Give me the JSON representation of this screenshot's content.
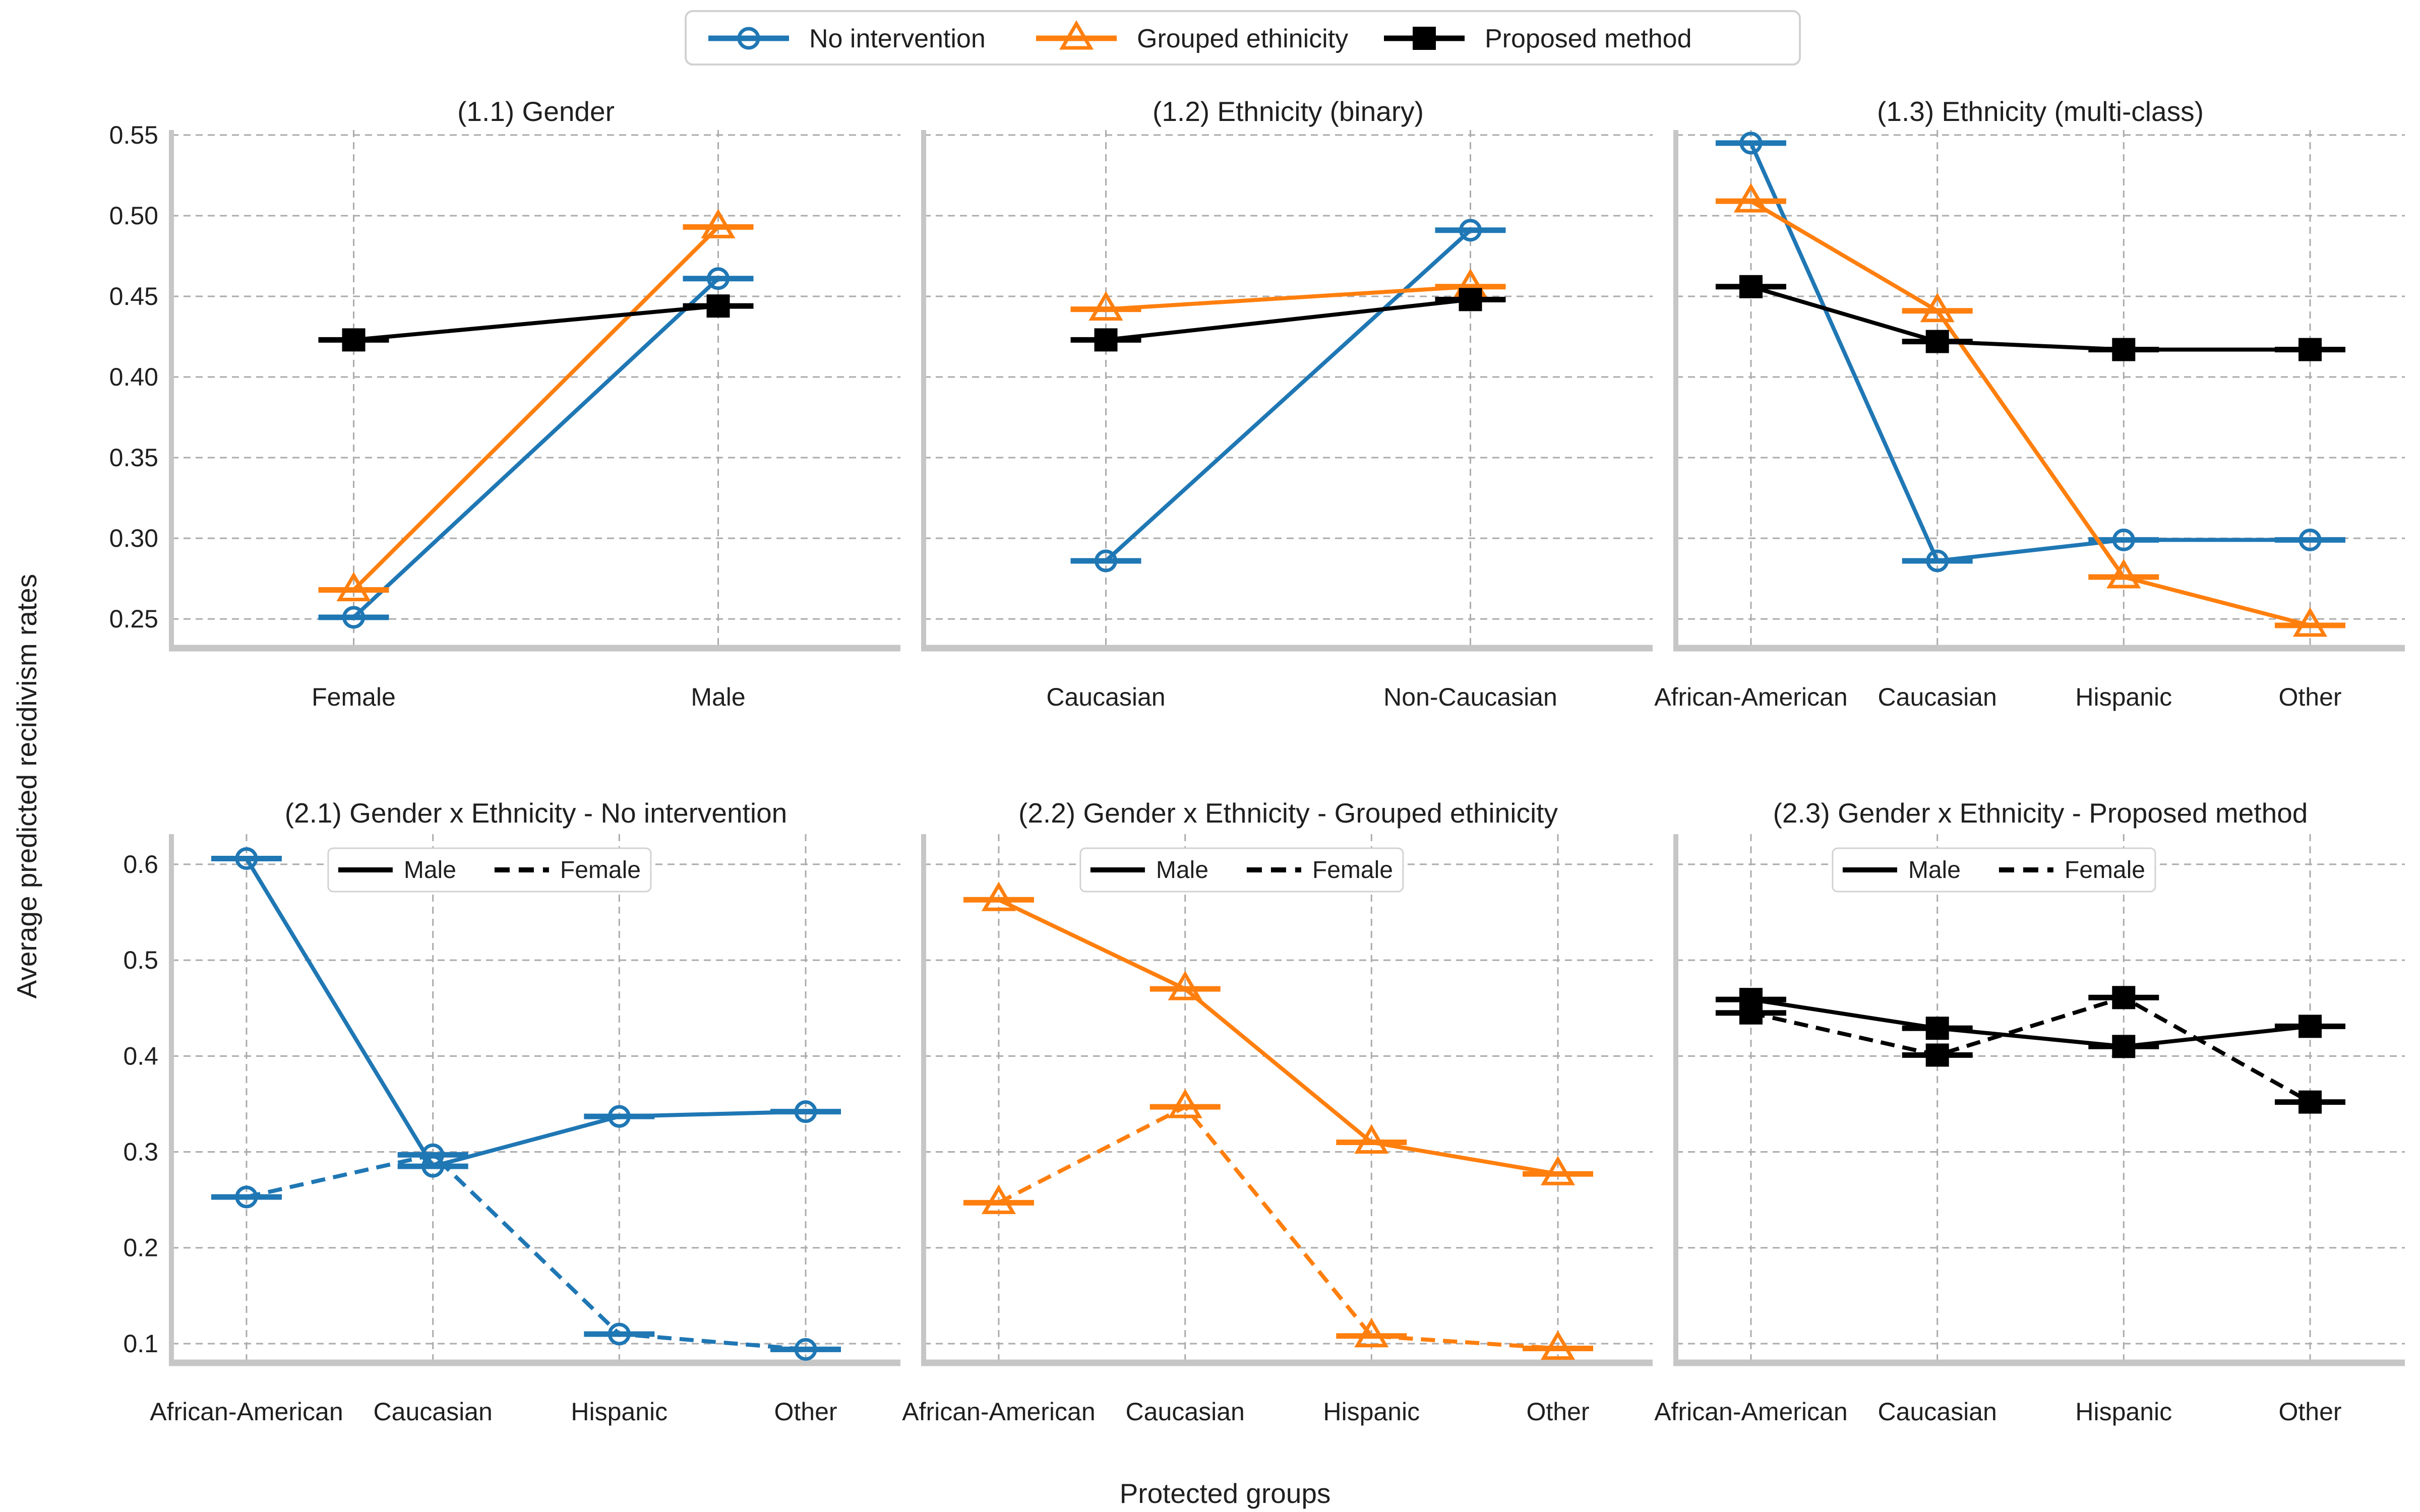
{
  "colors": {
    "blue": "#1f77b4",
    "orange": "#ff7f0e",
    "black": "#000000",
    "grid": "#ababab",
    "spine": "#c6c6c6",
    "text": "#1f1f1f",
    "legend_border": "#d2d2d2",
    "background": "#ffffff"
  },
  "axes": {
    "ylabel": "Average predicted recidivism rates",
    "xlabel": "Protected groups",
    "row1_ticks": [
      {
        "label": "0.55",
        "value": 0.55
      },
      {
        "label": "0.50",
        "value": 0.5
      },
      {
        "label": "0.45",
        "value": 0.45
      },
      {
        "label": "0.40",
        "value": 0.4
      },
      {
        "label": "0.35",
        "value": 0.35
      },
      {
        "label": "0.30",
        "value": 0.3
      },
      {
        "label": "0.25",
        "value": 0.25
      }
    ],
    "row2_ticks": [
      {
        "label": "0.6",
        "value": 0.6
      },
      {
        "label": "0.5",
        "value": 0.5
      },
      {
        "label": "0.4",
        "value": 0.4
      },
      {
        "label": "0.3",
        "value": 0.3
      },
      {
        "label": "0.2",
        "value": 0.2
      },
      {
        "label": "0.1",
        "value": 0.1
      }
    ],
    "row1_ylim": [
      0.2319,
      0.5531
    ],
    "row2_ylim": [
      0.08,
      0.6315
    ]
  },
  "legend": {
    "items": [
      {
        "label": "No intervention",
        "color": "blue",
        "marker": "circle"
      },
      {
        "label": "Grouped ethinicity",
        "color": "orange",
        "marker": "triangle"
      },
      {
        "label": "Proposed method",
        "color": "black",
        "marker": "square"
      }
    ]
  },
  "inner_legend": {
    "male_label": "Male",
    "female_label": "Female"
  },
  "chart_data": [
    {
      "id": "1.1",
      "type": "line",
      "row": 1,
      "col": 1,
      "title": "(1.1) Gender",
      "categories": [
        "Female",
        "Male"
      ],
      "series": [
        {
          "name": "No intervention",
          "color": "blue",
          "marker": "circle",
          "style": "solid",
          "values": [
            0.251,
            0.461
          ]
        },
        {
          "name": "Grouped ethinicity",
          "color": "orange",
          "marker": "triangle",
          "style": "solid",
          "values": [
            0.268,
            0.493
          ]
        },
        {
          "name": "Proposed method",
          "color": "black",
          "marker": "square",
          "style": "solid",
          "values": [
            0.423,
            0.444
          ]
        }
      ]
    },
    {
      "id": "1.2",
      "type": "line",
      "row": 1,
      "col": 2,
      "title": "(1.2) Ethnicity (binary)",
      "categories": [
        "Caucasian",
        "Non-Caucasian"
      ],
      "series": [
        {
          "name": "No intervention",
          "color": "blue",
          "marker": "circle",
          "style": "solid",
          "values": [
            0.286,
            0.491
          ]
        },
        {
          "name": "Grouped ethinicity",
          "color": "orange",
          "marker": "triangle",
          "style": "solid",
          "values": [
            0.442,
            0.456
          ]
        },
        {
          "name": "Proposed method",
          "color": "black",
          "marker": "square",
          "style": "solid",
          "values": [
            0.423,
            0.448
          ]
        }
      ]
    },
    {
      "id": "1.3",
      "type": "line",
      "row": 1,
      "col": 3,
      "title": "(1.3) Ethnicity (multi-class)",
      "categories": [
        "African-American",
        "Caucasian",
        "Hispanic",
        "Other"
      ],
      "series": [
        {
          "name": "No intervention",
          "color": "blue",
          "marker": "circle",
          "style": "solid",
          "values": [
            0.545,
            0.286,
            0.299,
            0.299
          ]
        },
        {
          "name": "Grouped ethinicity",
          "color": "orange",
          "marker": "triangle",
          "style": "solid",
          "values": [
            0.509,
            0.441,
            0.276,
            0.246
          ]
        },
        {
          "name": "Proposed method",
          "color": "black",
          "marker": "square",
          "style": "solid",
          "values": [
            0.456,
            0.422,
            0.417,
            0.417
          ]
        }
      ]
    },
    {
      "id": "2.1",
      "type": "line",
      "row": 2,
      "col": 1,
      "title": "(2.1) Gender x Ethnicity - No intervention",
      "categories": [
        "African-American",
        "Caucasian",
        "Hispanic",
        "Other"
      ],
      "has_inner_legend": true,
      "series": [
        {
          "name": "Male",
          "color": "blue",
          "marker": "circle",
          "style": "solid",
          "values": [
            0.606,
            0.285,
            0.337,
            0.342
          ]
        },
        {
          "name": "Female",
          "color": "blue",
          "marker": "circle",
          "style": "dashed",
          "values": [
            0.253,
            0.297,
            0.11,
            0.094
          ]
        }
      ]
    },
    {
      "id": "2.2",
      "type": "line",
      "row": 2,
      "col": 2,
      "title": "(2.2) Gender x Ethnicity - Grouped ethinicity",
      "categories": [
        "African-American",
        "Caucasian",
        "Hispanic",
        "Other"
      ],
      "has_inner_legend": true,
      "series": [
        {
          "name": "Male",
          "color": "orange",
          "marker": "triangle",
          "style": "solid",
          "values": [
            0.563,
            0.47,
            0.31,
            0.277
          ]
        },
        {
          "name": "Female",
          "color": "orange",
          "marker": "triangle",
          "style": "dashed",
          "values": [
            0.247,
            0.347,
            0.108,
            0.095
          ]
        }
      ]
    },
    {
      "id": "2.3",
      "type": "line",
      "row": 2,
      "col": 3,
      "title": "(2.3) Gender x Ethnicity - Proposed method",
      "categories": [
        "African-American",
        "Caucasian",
        "Hispanic",
        "Other"
      ],
      "has_inner_legend": true,
      "series": [
        {
          "name": "Male",
          "color": "black",
          "marker": "square",
          "style": "solid",
          "values": [
            0.459,
            0.429,
            0.41,
            0.431
          ]
        },
        {
          "name": "Female",
          "color": "black",
          "marker": "square",
          "style": "dashed",
          "values": [
            0.445,
            0.401,
            0.461,
            0.352
          ]
        }
      ]
    }
  ]
}
